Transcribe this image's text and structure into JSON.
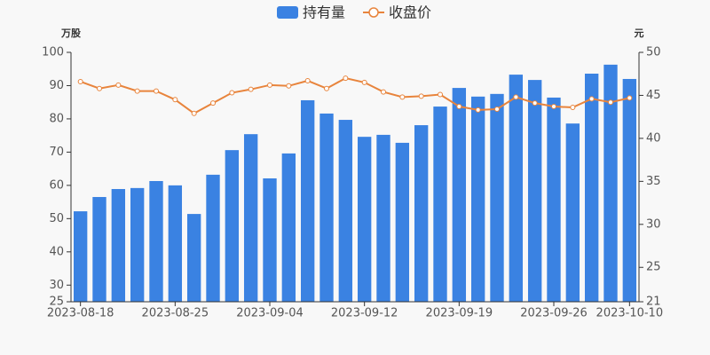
{
  "chart_data": {
    "type": "combo",
    "y_label": "万股",
    "y2_label": "元",
    "categories": [
      "2023-08-18",
      null,
      null,
      null,
      null,
      "2023-08-25",
      null,
      null,
      null,
      null,
      "2023-09-04",
      null,
      null,
      null,
      null,
      "2023-09-12",
      null,
      null,
      null,
      null,
      "2023-09-19",
      null,
      null,
      null,
      null,
      "2023-09-26",
      null,
      null,
      null,
      "2023-10-10"
    ],
    "series": [
      {
        "name": "持有量",
        "type": "bar",
        "color": "#3a82e2",
        "axis": "y",
        "values": [
          52.2,
          56.5,
          58.9,
          59.2,
          61.3,
          60.0,
          51.4,
          63.2,
          70.6,
          75.4,
          62.1,
          69.6,
          85.6,
          81.6,
          79.7,
          74.6,
          75.2,
          72.8,
          78.1,
          83.7,
          89.3,
          86.7,
          87.5,
          93.3,
          91.7,
          86.4,
          78.6,
          93.6,
          96.3,
          92.0
        ]
      },
      {
        "name": "收盘价",
        "type": "line",
        "color": "#e8843c",
        "axis": "y2",
        "values": [
          46.6,
          45.8,
          46.2,
          45.5,
          45.5,
          44.5,
          42.9,
          44.1,
          45.3,
          45.7,
          46.2,
          46.1,
          46.7,
          45.8,
          47.0,
          46.5,
          45.4,
          44.8,
          44.9,
          45.1,
          43.7,
          43.3,
          43.4,
          44.8,
          44.1,
          43.7,
          43.6,
          44.6,
          44.2,
          44.7
        ]
      }
    ],
    "ylim": [
      25,
      100
    ],
    "yticks": [
      25,
      30,
      40,
      50,
      60,
      70,
      80,
      90,
      100
    ],
    "y2lim": [
      21,
      50
    ],
    "y2ticks": [
      21,
      25,
      30,
      35,
      40,
      45,
      50
    ],
    "legend": "top"
  }
}
